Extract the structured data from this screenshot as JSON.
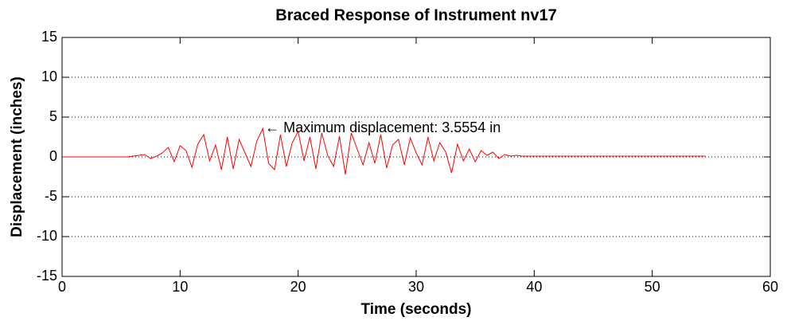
{
  "chart_data": {
    "type": "line",
    "title": "Braced Response of Instrument nv17",
    "x_label": "Time (seconds)",
    "y_label": "Displacement (inches)",
    "x": [
      0,
      0.5,
      1,
      1.5,
      2,
      2.5,
      3,
      3.5,
      4,
      4.5,
      5,
      5.5,
      6,
      6.5,
      7,
      7.5,
      8,
      8.5,
      9,
      9.5,
      10,
      10.5,
      11,
      11.5,
      12,
      12.5,
      13,
      13.5,
      14,
      14.5,
      15,
      15.5,
      16,
      16.5,
      17,
      17.5,
      18,
      18.5,
      19,
      19.5,
      20,
      20.5,
      21,
      21.5,
      22,
      22.5,
      23,
      23.5,
      24,
      24.5,
      25,
      25.5,
      26,
      26.5,
      27,
      27.5,
      28,
      28.5,
      29,
      29.5,
      30,
      30.5,
      31,
      31.5,
      32,
      32.5,
      33,
      33.5,
      34,
      34.5,
      35,
      35.5,
      36,
      36.5,
      37,
      37.5,
      38,
      38.5,
      39,
      39.5,
      40,
      40.5,
      41,
      41.5,
      42,
      42.5,
      43,
      43.5,
      44,
      44.5,
      45,
      45.5,
      46,
      46.5,
      47,
      47.5,
      48,
      48.5,
      49,
      49.5,
      50,
      50.5,
      51,
      51.5,
      52,
      52.5,
      53,
      53.5,
      54,
      54.5
    ],
    "series": [
      {
        "name": "nv17",
        "color": "#ff0000",
        "values": [
          0,
          0,
          0,
          0,
          0,
          0,
          0,
          0,
          0,
          0,
          0,
          0,
          0.1,
          0.2,
          0.3,
          -0.2,
          0.1,
          0.5,
          1.2,
          -0.6,
          1.4,
          0.8,
          -1.3,
          1.6,
          2.8,
          -0.5,
          1.5,
          -1.6,
          2.5,
          -1.5,
          2.2,
          0.5,
          -1.2,
          2.0,
          3.5554,
          -0.8,
          -1.6,
          2.8,
          -1.2,
          1.8,
          3.2,
          -0.5,
          2.5,
          -1.5,
          3.0,
          0.2,
          -1.2,
          2.6,
          -2.2,
          3.0,
          1.0,
          -1.0,
          1.8,
          -0.8,
          2.8,
          -1.4,
          1.5,
          2.2,
          -1.0,
          2.4,
          0.5,
          -1.0,
          2.5,
          -0.5,
          1.8,
          0.6,
          -2.0,
          1.6,
          -0.5,
          1.0,
          -0.6,
          0.8,
          0.2,
          0.6,
          -0.2,
          0.3,
          0.1,
          0.2,
          0.1,
          0.1,
          0.1,
          0.1,
          0.1,
          0.1,
          0.1,
          0.1,
          0.1,
          0.1,
          0.1,
          0.1,
          0.1,
          0.1,
          0.1,
          0.1,
          0.1,
          0.1,
          0.1,
          0.1,
          0.1,
          0.1,
          0.1,
          0.1,
          0.1,
          0.1,
          0.1,
          0.1,
          0.1,
          0.1,
          0.1,
          0.1
        ]
      }
    ],
    "xlim": [
      0,
      60
    ],
    "xticks": [
      0,
      10,
      20,
      30,
      40,
      50,
      60
    ],
    "ylim": [
      -15,
      15
    ],
    "yticks": [
      -15,
      -10,
      -5,
      0,
      5,
      10,
      15
    ],
    "ygrid": true,
    "annotation": {
      "text": "← Maximum displacement: 3.5554 in",
      "x": 17.2,
      "y": 3.5554
    }
  }
}
